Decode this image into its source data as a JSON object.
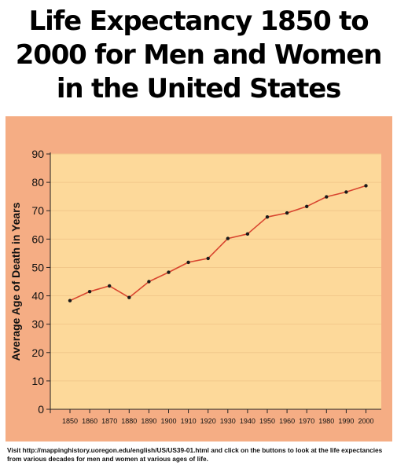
{
  "title": {
    "line1": "Life Expectancy 1850 to",
    "line2": "2000 for Men and Women",
    "line3": "in the United States"
  },
  "footnote": "Visit http://mappinghistory.uoregon.edu/english/US/US39-01.html and click on the buttons to look at the life expectancies from various decades for men and women at various ages of life.",
  "colors": {
    "outer_panel": "#f5ad84",
    "plot_area": "#fdd99a",
    "gridline": "#f2c88a",
    "line": "#d8452f",
    "marker": "#1a1a1a"
  },
  "chart_data": {
    "type": "line",
    "title": "Life Expectancy 1850 to 2000 for Men and Women in the United States",
    "xlabel": "",
    "ylabel": "Average Age of Death in Years",
    "categories": [
      "1850",
      "1860",
      "1870",
      "1880",
      "1890",
      "1900",
      "1910",
      "1920",
      "1930",
      "1940",
      "1950",
      "1960",
      "1970",
      "1980",
      "1990",
      "2000"
    ],
    "series": [
      {
        "values": [
          38.3,
          41.5,
          43.5,
          39.4,
          45.0,
          48.3,
          51.8,
          53.2,
          60.2,
          61.8,
          67.8,
          69.2,
          71.5,
          74.9,
          76.6,
          78.8
        ]
      }
    ],
    "ylim": [
      0,
      90
    ],
    "yticks": [
      0,
      10,
      20,
      30,
      40,
      50,
      60,
      70,
      80,
      90
    ],
    "grid": true,
    "legend": "none"
  }
}
